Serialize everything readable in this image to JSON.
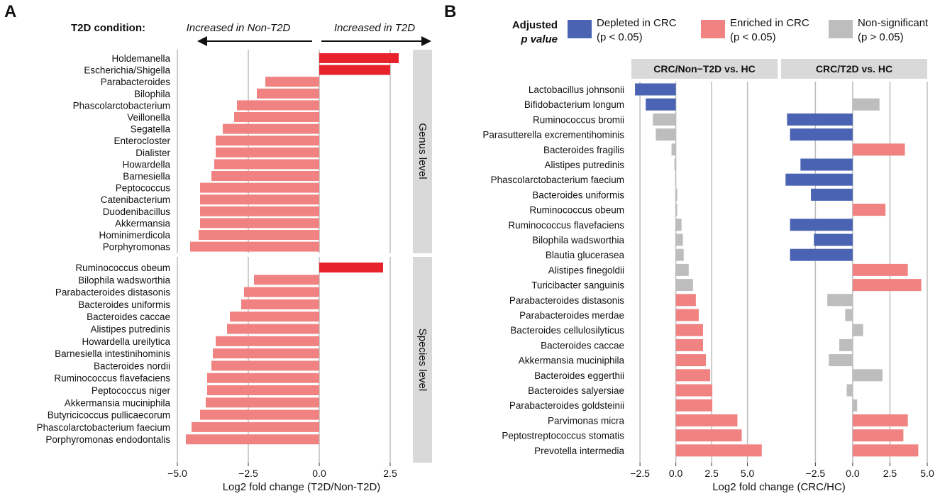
{
  "colors": {
    "enriched_dark": "#e8222b",
    "decrease_light": "#f08282",
    "depleted": "#4a63b3",
    "nonsig": "#bdbdbd",
    "strip": "#d9d9d9",
    "grid": "#bdbdbd"
  },
  "panel_a": {
    "letter": "A",
    "condition_label": "T2D condition:",
    "left_arrow_label": "Increased in Non-T2D",
    "right_arrow_label": "Increased in T2D",
    "x_title": "Log2 fold change (T2D/Non-T2D)",
    "strip_genus": "Genus level",
    "strip_species": "Species level"
  },
  "panel_b": {
    "letter": "B",
    "legend_title_1": "Adjusted",
    "legend_title_2": "p value",
    "legend_depleted_1": "Depleted in CRC",
    "legend_depleted_2": "(p < 0.05)",
    "legend_enriched_1": "Enriched in CRC",
    "legend_enriched_2": "(p < 0.05)",
    "legend_nonsig_1": "Non-significant",
    "legend_nonsig_2": "(p > 0.05)",
    "facet_1": "CRC/Non−T2D vs. HC",
    "facet_2": "CRC/T2D vs. HC",
    "x_title": "Log2 fold change (CRC/HC)"
  },
  "chart_data": [
    {
      "type": "bar",
      "orientation": "horizontal",
      "title": "",
      "xlabel": "Log2 fold change (T2D/Non-T2D)",
      "xlim": [
        -5.0,
        3.2
      ],
      "xticks": [
        "−5.0",
        "−2.5",
        "0.0",
        "2.5"
      ],
      "xtick_values": [
        -5.0,
        -2.5,
        0.0,
        2.5
      ],
      "facets": [
        {
          "name": "Genus level",
          "categories": [
            "Holdemanella",
            "Escherichia/Shigella",
            "Parabacteroides",
            "Bilophila",
            "Phascolarctobacterium",
            "Veillonella",
            "Segatella",
            "Enterocloster",
            "Dialister",
            "Howardella",
            "Barnesiella",
            "Peptococcus",
            "Catenibacterium",
            "Duodenibacillus",
            "Akkermansia",
            "Hominimerdicola",
            "Porphyromonas"
          ],
          "values": [
            2.8,
            2.5,
            -1.9,
            -2.2,
            -2.9,
            -3.0,
            -3.4,
            -3.65,
            -3.65,
            -3.7,
            -3.8,
            -4.2,
            -4.2,
            -4.2,
            -4.2,
            -4.25,
            -4.55
          ]
        },
        {
          "name": "Species level",
          "categories": [
            "Ruminococcus obeum",
            "Bilophila wadsworthia",
            "Parabacteroides distasonis",
            "Bacteroides uniformis",
            "Bacteroides caccae",
            "Alistipes putredinis",
            "Howardella ureilytica",
            "Barnesiella intestinihominis",
            "Bacteroides nordii",
            "Ruminococcus flavefaciens",
            "Peptococcus niger",
            "Akkermansia muciniphila",
            "Butyricicoccus pullicaecorum",
            "Phascolarctobacterium faecium",
            "Porphyromonas endodontalis"
          ],
          "values": [
            2.25,
            -2.3,
            -2.65,
            -2.75,
            -3.15,
            -3.25,
            -3.65,
            -3.75,
            -3.8,
            -3.95,
            -3.95,
            -4.0,
            -4.2,
            -4.5,
            -4.7
          ]
        }
      ]
    },
    {
      "type": "bar",
      "orientation": "horizontal",
      "title": "",
      "xlabel": "Log2 fold change (CRC/HC)",
      "categories": [
        "Lactobacillus johnsonii",
        "Bifidobacterium longum",
        "Ruminococcus bromii",
        "Parasutterella excrementihominis",
        "Bacteroides fragilis",
        "Alistipes putredinis",
        "Phascolarctobacterium faecium",
        "Bacteroides uniformis",
        "Ruminococcus obeum",
        "Ruminococcus flavefaciens",
        "Bilophila wadsworthia",
        "Blautia glucerasea",
        "Alistipes finegoldii",
        "Turicibacter sanguinis",
        "Parabacteroides distasonis",
        "Parabacteroides merdae",
        "Bacteroides cellulosilyticus",
        "Bacteroides caccae",
        "Akkermansia muciniphila",
        "Bacteroides eggerthii",
        "Bacteroides salyersiae",
        "Parabacteroides goldsteinii",
        "Parvimonas micra",
        "Peptostreptococcus stomatis",
        "Prevotella intermedia"
      ],
      "series": [
        {
          "name": "CRC/Non−T2D vs. HC",
          "xlim": [
            -3.1,
            7.1
          ],
          "xticks": [
            "−2.5",
            "0.0",
            "2.5",
            "5.0"
          ],
          "xtick_values": [
            -2.5,
            0.0,
            2.5,
            5.0
          ],
          "values": [
            -2.85,
            -2.1,
            -1.6,
            -1.4,
            -0.3,
            -0.1,
            -0.05,
            0.1,
            0.1,
            0.4,
            0.5,
            0.55,
            0.9,
            1.2,
            1.4,
            1.6,
            1.9,
            1.9,
            2.1,
            2.4,
            2.55,
            2.55,
            4.3,
            4.6,
            6.0
          ],
          "significance": [
            "depleted",
            "depleted",
            "ns",
            "ns",
            "ns",
            "ns",
            "ns",
            "ns",
            "ns",
            "ns",
            "ns",
            "ns",
            "ns",
            "ns",
            "enriched",
            "enriched",
            "enriched",
            "enriched",
            "enriched",
            "enriched",
            "enriched",
            "enriched",
            "enriched",
            "enriched",
            "enriched"
          ]
        },
        {
          "name": "CRC/T2D vs. HC",
          "xlim": [
            -4.8,
            5.0
          ],
          "xticks": [
            "−2.5",
            "0.0",
            "2.5",
            "5.0"
          ],
          "xtick_values": [
            -2.5,
            0.0,
            2.5,
            5.0
          ],
          "values": [
            0.0,
            1.8,
            -4.4,
            -4.2,
            3.5,
            -3.5,
            -4.5,
            -2.8,
            2.2,
            -4.2,
            -2.6,
            -4.2,
            3.7,
            4.6,
            -1.7,
            -0.5,
            0.7,
            -0.9,
            -1.6,
            2.0,
            -0.4,
            0.3,
            3.7,
            3.4,
            4.4
          ],
          "significance": [
            "ns",
            "ns",
            "depleted",
            "depleted",
            "enriched",
            "depleted",
            "depleted",
            "depleted",
            "enriched",
            "depleted",
            "depleted",
            "depleted",
            "enriched",
            "enriched",
            "ns",
            "ns",
            "ns",
            "ns",
            "ns",
            "ns",
            "ns",
            "ns",
            "enriched",
            "enriched",
            "enriched"
          ]
        }
      ],
      "legend_position": "top"
    }
  ]
}
